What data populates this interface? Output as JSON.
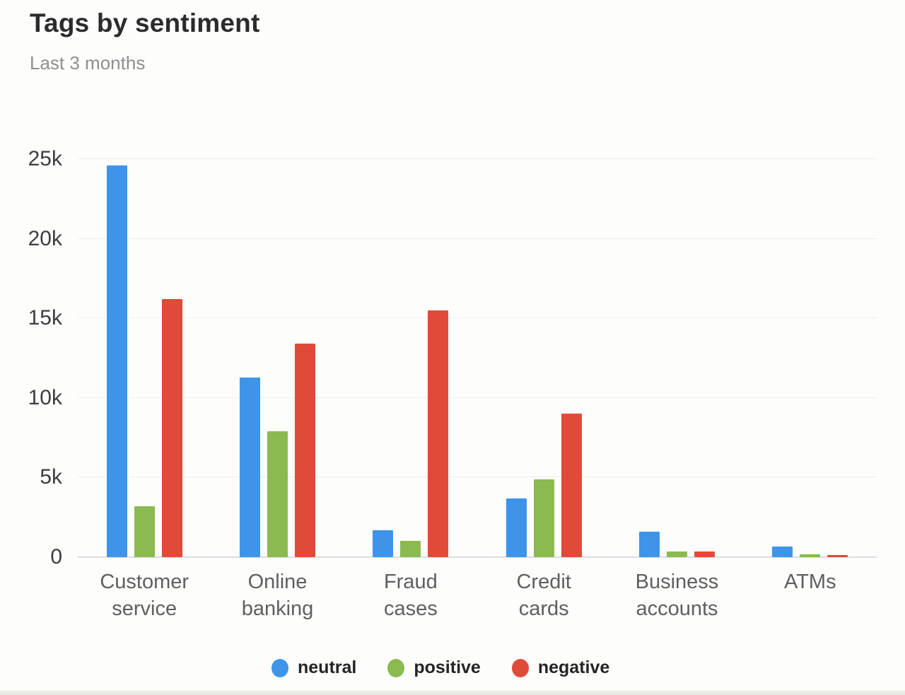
{
  "header": {
    "title": "Tags by sentiment",
    "subtitle": "Last 3 months"
  },
  "chart_data": {
    "type": "bar",
    "title": "Tags by sentiment",
    "subtitle": "Last 3 months",
    "categories": [
      "Customer\nservice",
      "Online\nbanking",
      "Fraud\ncases",
      "Credit\ncards",
      "Business\naccounts",
      "ATMs"
    ],
    "series": [
      {
        "name": "neutral",
        "color": "#3d94e9",
        "values": [
          24600,
          11300,
          1700,
          3700,
          1600,
          650
        ]
      },
      {
        "name": "positive",
        "color": "#8bba50",
        "values": [
          3200,
          7900,
          1000,
          4900,
          350,
          180
        ]
      },
      {
        "name": "negative",
        "color": "#de4b38",
        "values": [
          16200,
          13400,
          15500,
          9000,
          360,
          140
        ]
      }
    ],
    "ylim": [
      0,
      25000
    ],
    "yticks": [
      {
        "value": 25000,
        "label": "25k"
      },
      {
        "value": 20000,
        "label": "20k"
      },
      {
        "value": 15000,
        "label": "15k"
      },
      {
        "value": 10000,
        "label": "10k"
      },
      {
        "value": 5000,
        "label": "5k"
      },
      {
        "value": 0,
        "label": "0"
      }
    ],
    "grid": true,
    "legend_position": "bottom",
    "colors": {
      "gridline": "#ededf0",
      "baseline": "#dcdce1",
      "title_text": "#2b2b2b",
      "subtitle_text": "#8f8f8f",
      "axis_text": "#3d3d3d",
      "category_text": "#5e5e5e"
    }
  }
}
